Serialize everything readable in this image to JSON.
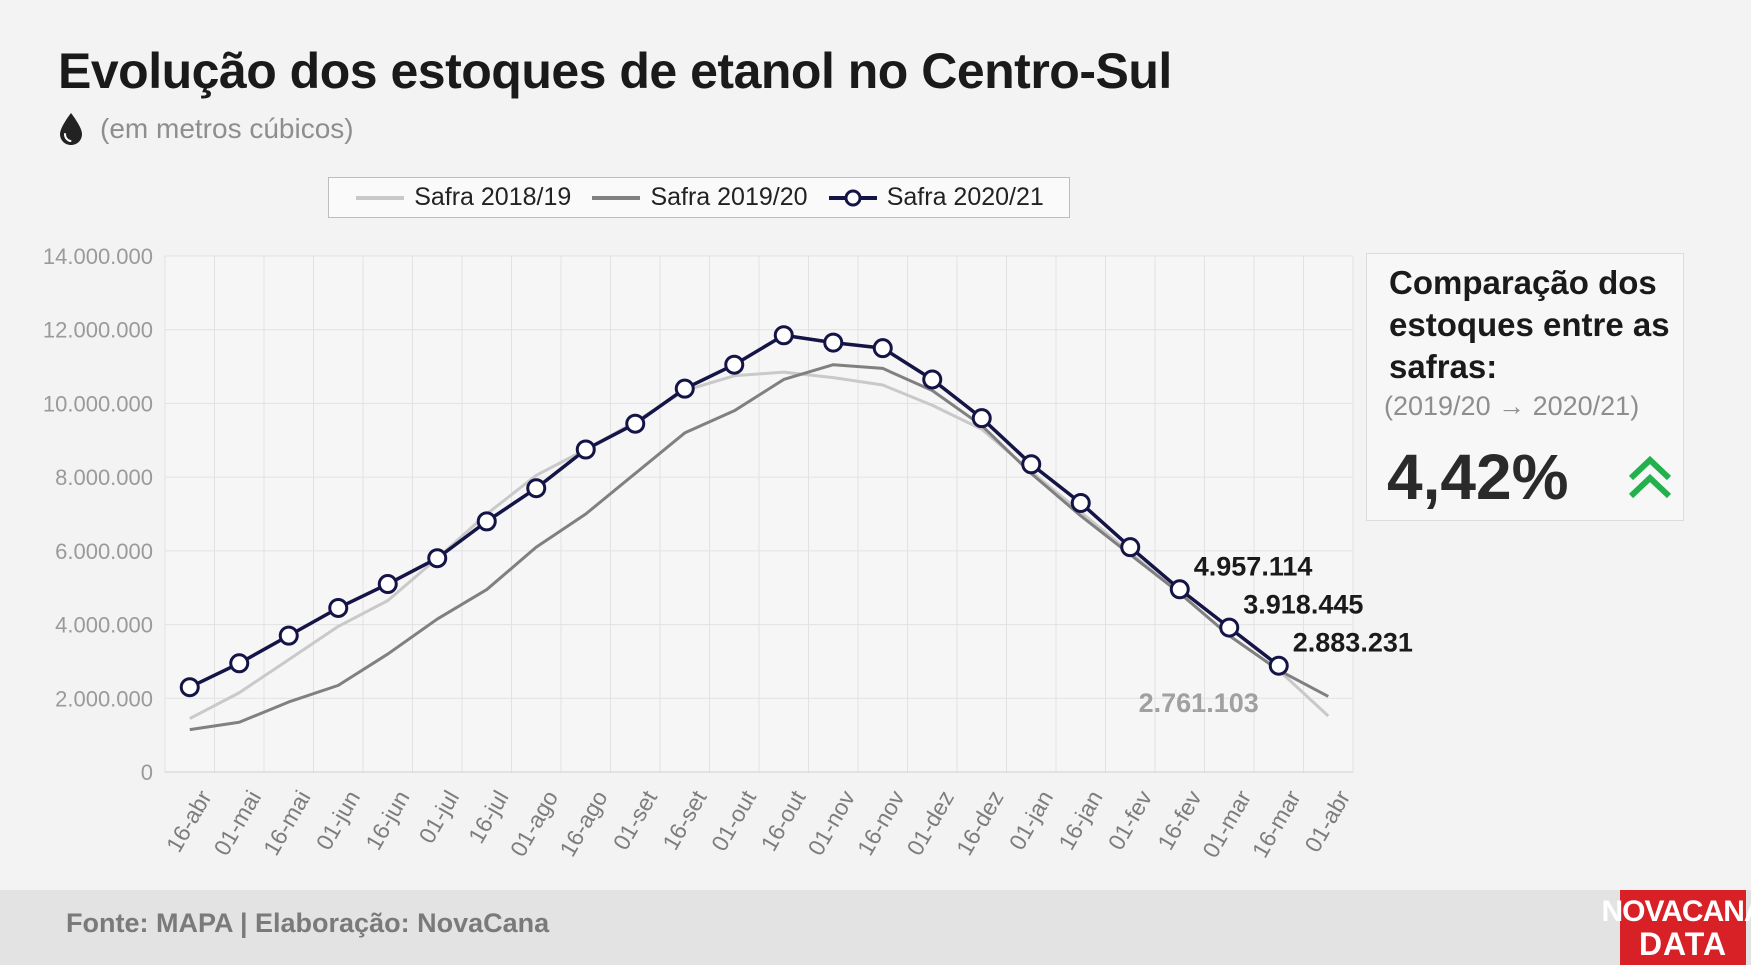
{
  "header": {
    "title": "Evolução dos estoques de etanol no Centro-Sul",
    "subtitle": "(em metros cúbicos)",
    "icon": "drop-icon"
  },
  "comparison": {
    "title": "Comparação dos estoques entre as safras:",
    "period": "(2019/20 → 2020/21)",
    "value": "4,42%",
    "trend_icon": "double-chevron-up-icon",
    "trend_color": "#22b14c"
  },
  "footer": {
    "source": "Fonte: MAPA  | Elaboração: NovaCana"
  },
  "logo": {
    "line1": "NOVACANA",
    "line2": "DATA"
  },
  "chart_data": {
    "type": "line",
    "title": "Evolução dos estoques de etanol no Centro-Sul",
    "ylabel": "",
    "xlabel": "",
    "ylim": [
      0,
      14000000
    ],
    "yticks": [
      0,
      2000000,
      4000000,
      6000000,
      8000000,
      10000000,
      12000000,
      14000000
    ],
    "ytick_labels": [
      "0",
      "2.000.000",
      "4.000.000",
      "6.000.000",
      "8.000.000",
      "10.000.000",
      "12.000.000",
      "14.000.000"
    ],
    "grid": true,
    "legend_position": "top",
    "categories": [
      "16-abr",
      "01-mai",
      "16-mai",
      "01-jun",
      "16-jun",
      "01-jul",
      "16-jul",
      "01-ago",
      "16-ago",
      "01-set",
      "16-set",
      "01-out",
      "16-out",
      "01-nov",
      "16-nov",
      "01-dez",
      "16-dez",
      "01-jan",
      "16-jan",
      "01-fev",
      "16-fev",
      "01-mar",
      "16-mar",
      "01-abr"
    ],
    "series": [
      {
        "name": "Safra 2018/19",
        "color": "#c9c9c9",
        "marker": false,
        "values": [
          1450000,
          2150000,
          3050000,
          3950000,
          4650000,
          5800000,
          7000000,
          8050000,
          8750000,
          9500000,
          10350000,
          10750000,
          10850000,
          10700000,
          10500000,
          9950000,
          9300000,
          8150000,
          7050000,
          5950000,
          4850000,
          3700000,
          2761103,
          1520000
        ]
      },
      {
        "name": "Safra 2019/20",
        "color": "#808080",
        "marker": false,
        "values": [
          1150000,
          1350000,
          1900000,
          2350000,
          3200000,
          4150000,
          4950000,
          6100000,
          7000000,
          8100000,
          9200000,
          9800000,
          10650000,
          11050000,
          10950000,
          10350000,
          9400000,
          8100000,
          6950000,
          5900000,
          4850000,
          3700000,
          2761103,
          2050000
        ]
      },
      {
        "name": "Safra 2020/21",
        "color": "#141446",
        "marker": true,
        "values": [
          2300000,
          2950000,
          3700000,
          4450000,
          5100000,
          5800000,
          6800000,
          7700000,
          8750000,
          9450000,
          10400000,
          11050000,
          11850000,
          11650000,
          11500000,
          10650000,
          9600000,
          8350000,
          7300000,
          6100000,
          4957114,
          3918445,
          2883231,
          null
        ]
      }
    ],
    "annotations": [
      {
        "text": "4.957.114",
        "series": "Safra 2020/21",
        "category": "16-fev",
        "color": "#1a1a1a"
      },
      {
        "text": "3.918.445",
        "series": "Safra 2020/21",
        "category": "01-mar",
        "color": "#1a1a1a"
      },
      {
        "text": "2.883.231",
        "series": "Safra 2020/21",
        "category": "16-mar",
        "color": "#1a1a1a"
      },
      {
        "text": "2.761.103",
        "series": "Safra 2019/20",
        "category": "16-mar",
        "color": "#a0a0a0"
      }
    ]
  }
}
